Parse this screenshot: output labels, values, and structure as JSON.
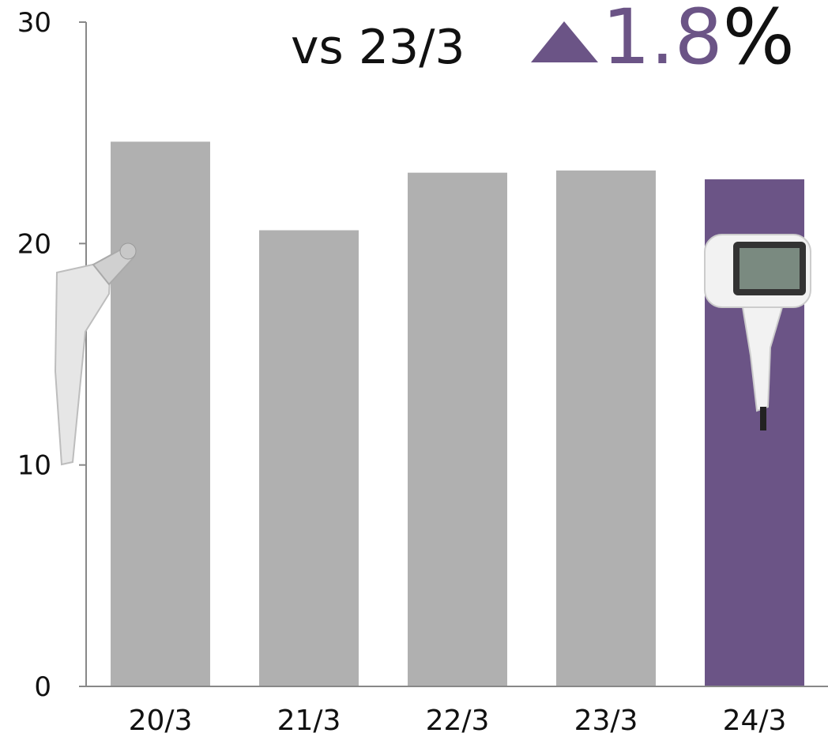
{
  "chart_data": {
    "type": "bar",
    "title": "vs 23/3",
    "delta_value": "1.8",
    "delta_unit": "%",
    "categories": [
      "20/3",
      "21/3",
      "22/3",
      "23/3",
      "24/3"
    ],
    "values": [
      24.6,
      20.6,
      23.2,
      23.3,
      22.9
    ],
    "colors": [
      "#b0b0b0",
      "#b0b0b0",
      "#b0b0b0",
      "#b0b0b0",
      "#6b5486"
    ],
    "ylim": [
      0,
      30
    ],
    "yticks": [
      0,
      10,
      20,
      30
    ],
    "grid": false
  }
}
